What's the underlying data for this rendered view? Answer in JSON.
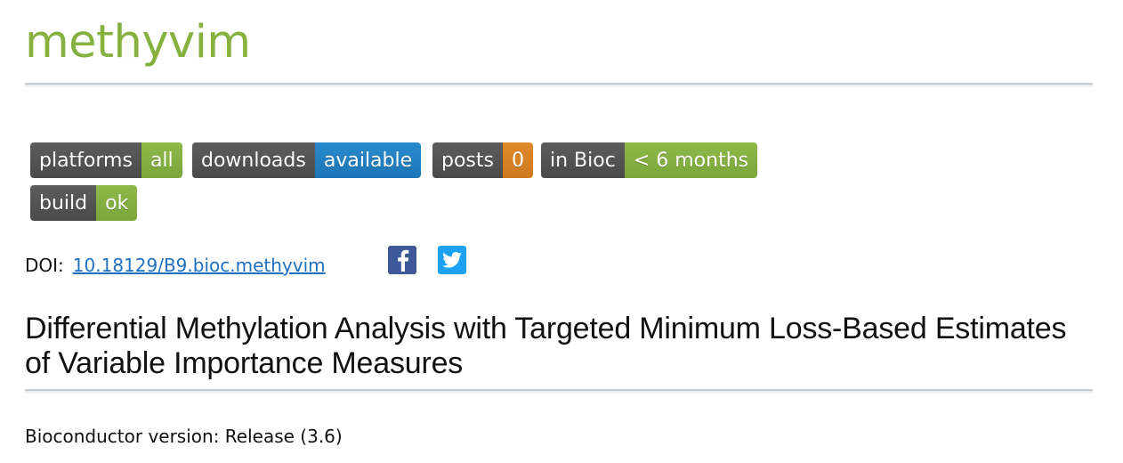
{
  "package": {
    "name": "methyvim"
  },
  "badges": [
    {
      "key": "platforms",
      "value": "all",
      "color": "#87b13f"
    },
    {
      "key": "downloads",
      "value": "available",
      "color": "#1b76b7"
    },
    {
      "key": "posts",
      "value": "0",
      "color": "#cf781e"
    },
    {
      "key": "in Bioc",
      "value": "< 6 months",
      "color": "#87b13f"
    },
    {
      "key": "build",
      "value": "ok",
      "color": "#87b13f"
    }
  ],
  "doi": {
    "label": "DOI:",
    "link_text": "10.18129/B9.bioc.methyvim"
  },
  "social": {
    "facebook_icon": "facebook-icon",
    "twitter_icon": "twitter-icon"
  },
  "description_title": "Differential Methylation Analysis with Targeted Minimum Loss-Based Estimates of Variable Importance Measures",
  "bioconductor_version": "Bioconductor version: Release (3.6)",
  "colors": {
    "title": "#87b13f",
    "link": "#1f6fc0",
    "badge_key": "#555555"
  }
}
